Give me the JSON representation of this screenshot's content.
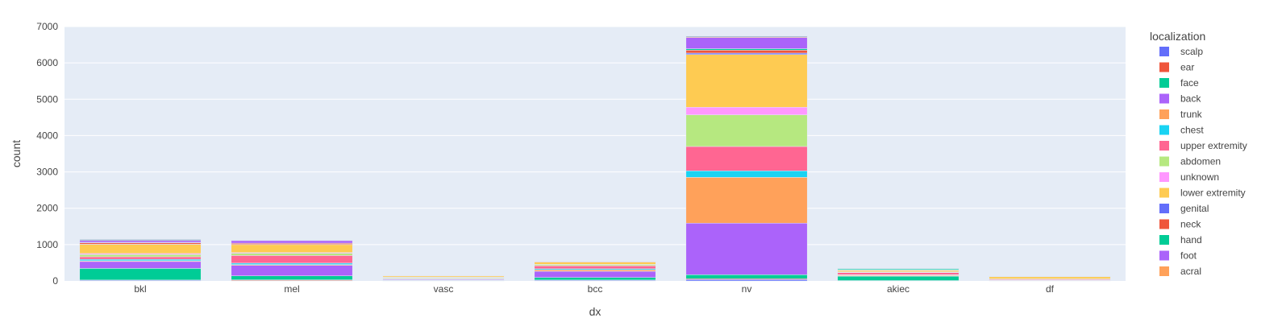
{
  "chart_data": {
    "type": "bar",
    "stacked": true,
    "xlabel": "dx",
    "ylabel": "count",
    "ylim": [
      0,
      7000
    ],
    "y_ticks": [
      0,
      1000,
      2000,
      3000,
      4000,
      5000,
      6000,
      7000
    ],
    "grid": true,
    "legend_title": "localization",
    "legend_position": "right",
    "categories": [
      "bkl",
      "mel",
      "vasc",
      "bcc",
      "nv",
      "akiec",
      "df"
    ],
    "series": [
      {
        "name": "scalp",
        "color": "#636efa",
        "values": [
          20,
          10,
          5,
          20,
          40,
          5,
          0
        ]
      },
      {
        "name": "ear",
        "color": "#EF553B",
        "values": [
          5,
          20,
          2,
          5,
          20,
          5,
          0
        ]
      },
      {
        "name": "face",
        "color": "#00cc96",
        "values": [
          320,
          110,
          10,
          70,
          110,
          120,
          0
        ]
      },
      {
        "name": "back",
        "color": "#ab63fa",
        "values": [
          190,
          290,
          20,
          170,
          1420,
          10,
          5
        ]
      },
      {
        "name": "trunk",
        "color": "#FFA15A",
        "values": [
          20,
          20,
          15,
          40,
          1260,
          20,
          10
        ]
      },
      {
        "name": "chest",
        "color": "#19d3f3",
        "values": [
          40,
          40,
          10,
          30,
          180,
          10,
          5
        ]
      },
      {
        "name": "upper extremity",
        "color": "#FF6692",
        "values": [
          70,
          210,
          15,
          80,
          670,
          60,
          20
        ]
      },
      {
        "name": "abdomen",
        "color": "#B6E880",
        "values": [
          60,
          60,
          20,
          30,
          870,
          10,
          10
        ]
      },
      {
        "name": "unknown",
        "color": "#FF97FF",
        "values": [
          30,
          20,
          10,
          10,
          210,
          10,
          5
        ]
      },
      {
        "name": "lower extremity",
        "color": "#FECB52",
        "values": [
          250,
          220,
          30,
          60,
          1450,
          40,
          60
        ]
      },
      {
        "name": "genital",
        "color": "#636efa",
        "values": [
          5,
          5,
          2,
          2,
          40,
          2,
          0
        ]
      },
      {
        "name": "neck",
        "color": "#EF553B",
        "values": [
          40,
          30,
          10,
          15,
          80,
          10,
          5
        ]
      },
      {
        "name": "hand",
        "color": "#00cc96",
        "values": [
          10,
          5,
          2,
          5,
          40,
          30,
          10
        ]
      },
      {
        "name": "foot",
        "color": "#ab63fa",
        "values": [
          50,
          70,
          5,
          5,
          310,
          5,
          5
        ]
      },
      {
        "name": "acral",
        "color": "#FFA15A",
        "values": [
          5,
          5,
          2,
          3,
          20,
          5,
          5
        ]
      },
      {
        "name": "",
        "color": "#5a7fa8",
        "values": [
          25,
          5,
          2,
          4,
          20,
          5,
          0
        ]
      }
    ]
  }
}
